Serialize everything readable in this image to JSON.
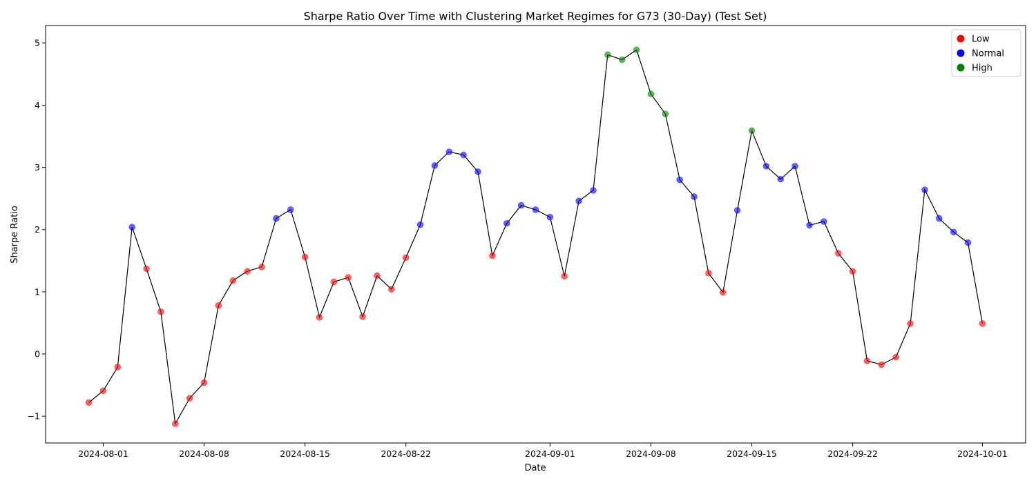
{
  "chart_data": {
    "type": "scatter",
    "title": "Sharpe Ratio Over Time with Clustering Market Regimes for G73 (30-Day) (Test Set)",
    "xlabel": "Date",
    "ylabel": "Sharpe Ratio",
    "x_range": [
      "2024-07-28",
      "2024-10-04"
    ],
    "ylim": [
      -1.43,
      5.28
    ],
    "x_ticks": [
      "2024-08-01",
      "2024-08-08",
      "2024-08-15",
      "2024-08-22",
      "2024-09-01",
      "2024-09-08",
      "2024-09-15",
      "2024-09-22",
      "2024-10-01"
    ],
    "y_ticks": [
      -1,
      0,
      1,
      2,
      3,
      4,
      5
    ],
    "y_tick_labels": [
      "−1",
      "0",
      "1",
      "2",
      "3",
      "4",
      "5"
    ],
    "grid": false,
    "legend_position": "top-right",
    "line_color": "#000000",
    "regimes": [
      {
        "name": "Low",
        "color": "#ff0000"
      },
      {
        "name": "Normal",
        "color": "#0000ff"
      },
      {
        "name": "High",
        "color": "#008000"
      }
    ],
    "points": [
      {
        "date": "2024-07-31",
        "value": -0.78,
        "regime": "Low"
      },
      {
        "date": "2024-08-01",
        "value": -0.59,
        "regime": "Low"
      },
      {
        "date": "2024-08-02",
        "value": -0.21,
        "regime": "Low"
      },
      {
        "date": "2024-08-03",
        "value": 2.04,
        "regime": "Normal"
      },
      {
        "date": "2024-08-04",
        "value": 1.37,
        "regime": "Low"
      },
      {
        "date": "2024-08-05",
        "value": 0.68,
        "regime": "Low"
      },
      {
        "date": "2024-08-06",
        "value": -1.12,
        "regime": "Low"
      },
      {
        "date": "2024-08-07",
        "value": -0.71,
        "regime": "Low"
      },
      {
        "date": "2024-08-08",
        "value": -0.46,
        "regime": "Low"
      },
      {
        "date": "2024-08-09",
        "value": 0.78,
        "regime": "Low"
      },
      {
        "date": "2024-08-10",
        "value": 1.18,
        "regime": "Low"
      },
      {
        "date": "2024-08-11",
        "value": 1.33,
        "regime": "Low"
      },
      {
        "date": "2024-08-12",
        "value": 1.4,
        "regime": "Low"
      },
      {
        "date": "2024-08-13",
        "value": 2.18,
        "regime": "Normal"
      },
      {
        "date": "2024-08-14",
        "value": 2.32,
        "regime": "Normal"
      },
      {
        "date": "2024-08-15",
        "value": 1.56,
        "regime": "Low"
      },
      {
        "date": "2024-08-16",
        "value": 0.59,
        "regime": "Low"
      },
      {
        "date": "2024-08-17",
        "value": 1.16,
        "regime": "Low"
      },
      {
        "date": "2024-08-18",
        "value": 1.23,
        "regime": "Low"
      },
      {
        "date": "2024-08-19",
        "value": 0.6,
        "regime": "Low"
      },
      {
        "date": "2024-08-20",
        "value": 1.26,
        "regime": "Low"
      },
      {
        "date": "2024-08-21",
        "value": 1.04,
        "regime": "Low"
      },
      {
        "date": "2024-08-22",
        "value": 1.55,
        "regime": "Low"
      },
      {
        "date": "2024-08-23",
        "value": 2.08,
        "regime": "Normal"
      },
      {
        "date": "2024-08-24",
        "value": 3.03,
        "regime": "Normal"
      },
      {
        "date": "2024-08-25",
        "value": 3.25,
        "regime": "Normal"
      },
      {
        "date": "2024-08-26",
        "value": 3.2,
        "regime": "Normal"
      },
      {
        "date": "2024-08-27",
        "value": 2.93,
        "regime": "Normal"
      },
      {
        "date": "2024-08-28",
        "value": 1.58,
        "regime": "Low"
      },
      {
        "date": "2024-08-29",
        "value": 2.1,
        "regime": "Normal"
      },
      {
        "date": "2024-08-30",
        "value": 2.39,
        "regime": "Normal"
      },
      {
        "date": "2024-08-31",
        "value": 2.32,
        "regime": "Normal"
      },
      {
        "date": "2024-09-01",
        "value": 2.2,
        "regime": "Normal"
      },
      {
        "date": "2024-09-02",
        "value": 1.25,
        "regime": "Low"
      },
      {
        "date": "2024-09-03",
        "value": 2.46,
        "regime": "Normal"
      },
      {
        "date": "2024-09-04",
        "value": 2.63,
        "regime": "Normal"
      },
      {
        "date": "2024-09-05",
        "value": 4.81,
        "regime": "High"
      },
      {
        "date": "2024-09-06",
        "value": 4.73,
        "regime": "High"
      },
      {
        "date": "2024-09-07",
        "value": 4.89,
        "regime": "High"
      },
      {
        "date": "2024-09-08",
        "value": 4.18,
        "regime": "High"
      },
      {
        "date": "2024-09-09",
        "value": 3.86,
        "regime": "High"
      },
      {
        "date": "2024-09-10",
        "value": 2.8,
        "regime": "Normal"
      },
      {
        "date": "2024-09-11",
        "value": 2.53,
        "regime": "Normal"
      },
      {
        "date": "2024-09-12",
        "value": 1.3,
        "regime": "Low"
      },
      {
        "date": "2024-09-13",
        "value": 0.99,
        "regime": "Low"
      },
      {
        "date": "2024-09-14",
        "value": 2.31,
        "regime": "Normal"
      },
      {
        "date": "2024-09-15",
        "value": 3.59,
        "regime": "High"
      },
      {
        "date": "2024-09-16",
        "value": 3.02,
        "regime": "Normal"
      },
      {
        "date": "2024-09-17",
        "value": 2.81,
        "regime": "Normal"
      },
      {
        "date": "2024-09-18",
        "value": 3.02,
        "regime": "Normal"
      },
      {
        "date": "2024-09-19",
        "value": 2.07,
        "regime": "Normal"
      },
      {
        "date": "2024-09-20",
        "value": 2.13,
        "regime": "Normal"
      },
      {
        "date": "2024-09-21",
        "value": 1.62,
        "regime": "Low"
      },
      {
        "date": "2024-09-22",
        "value": 1.33,
        "regime": "Low"
      },
      {
        "date": "2024-09-23",
        "value": -0.11,
        "regime": "Low"
      },
      {
        "date": "2024-09-24",
        "value": -0.17,
        "regime": "Low"
      },
      {
        "date": "2024-09-25",
        "value": -0.05,
        "regime": "Low"
      },
      {
        "date": "2024-09-26",
        "value": 0.49,
        "regime": "Low"
      },
      {
        "date": "2024-09-27",
        "value": 2.64,
        "regime": "Normal"
      },
      {
        "date": "2024-09-28",
        "value": 2.18,
        "regime": "Normal"
      },
      {
        "date": "2024-09-29",
        "value": 1.96,
        "regime": "Normal"
      },
      {
        "date": "2024-09-30",
        "value": 1.79,
        "regime": "Normal"
      },
      {
        "date": "2024-10-01",
        "value": 0.49,
        "regime": "Low"
      }
    ]
  }
}
